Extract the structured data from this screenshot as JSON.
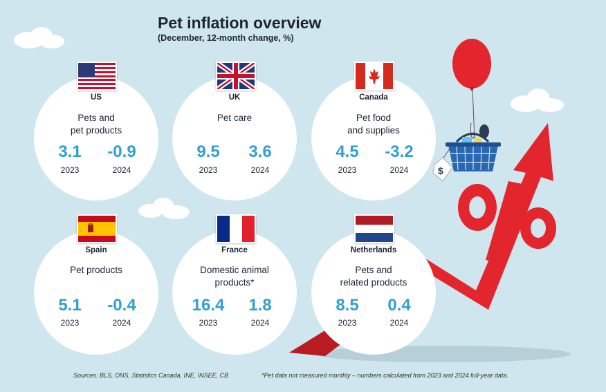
{
  "title": "Pet inflation overview",
  "subtitle": "(December, 12-month change, %)",
  "chart_data": {
    "type": "table",
    "title": "Pet inflation overview",
    "subtitle": "(December, 12-month change, %)",
    "columns": [
      "2023",
      "2024"
    ],
    "rows": [
      {
        "country": "US",
        "category": "Pets and pet products",
        "values": [
          3.1,
          -0.9
        ]
      },
      {
        "country": "UK",
        "category": "Pet care",
        "values": [
          9.5,
          3.6
        ]
      },
      {
        "country": "Canada",
        "category": "Pet food and supplies",
        "values": [
          4.5,
          -3.2
        ]
      },
      {
        "country": "Spain",
        "category": "Pet products",
        "values": [
          5.1,
          -0.4
        ]
      },
      {
        "country": "France",
        "category": "Domestic animal products*",
        "values": [
          16.4,
          1.8
        ]
      },
      {
        "country": "Netherlands",
        "category": "Pets and related products",
        "values": [
          8.5,
          0.4
        ]
      }
    ]
  },
  "cards": [
    {
      "country": "US",
      "flag_icon": "us-flag-icon",
      "category_line1": "Pets and",
      "category_line2": "pet products",
      "v2023": "3.1",
      "v2024": "-0.9",
      "y1": "2023",
      "y2": "2024"
    },
    {
      "country": "UK",
      "flag_icon": "uk-flag-icon",
      "category_line1": "Pet care",
      "category_line2": "",
      "v2023": "9.5",
      "v2024": "3.6",
      "y1": "2023",
      "y2": "2024"
    },
    {
      "country": "Canada",
      "flag_icon": "canada-flag-icon",
      "category_line1": "Pet food",
      "category_line2": "and supplies",
      "v2023": "4.5",
      "v2024": "-3.2",
      "y1": "2023",
      "y2": "2024"
    },
    {
      "country": "Spain",
      "flag_icon": "spain-flag-icon",
      "category_line1": "Pet products",
      "category_line2": "",
      "v2023": "5.1",
      "v2024": "-0.4",
      "y1": "2023",
      "y2": "2024"
    },
    {
      "country": "France",
      "flag_icon": "france-flag-icon",
      "category_line1": "Domestic animal",
      "category_line2": "products*",
      "v2023": "16.4",
      "v2024": "1.8",
      "y1": "2023",
      "y2": "2024"
    },
    {
      "country": "Netherlands",
      "flag_icon": "netherlands-flag-icon",
      "category_line1": "Pets and",
      "category_line2": "related products",
      "v2023": "8.5",
      "v2024": "0.4",
      "y1": "2023",
      "y2": "2024"
    }
  ],
  "sources": "Sources: BLS, ONS, Statistics Canada, INE, INSEE, CB",
  "footnote": "*Pet data not measured monthly – numbers calculated from 2023 and 2024 full-year data.",
  "colors": {
    "background": "#cfe6ee",
    "value_blue": "#2f9fd4",
    "arrow_red": "#e3262d"
  },
  "decoration_icons": [
    "balloon-icon",
    "shopping-basket-icon",
    "price-tag-icon",
    "percent-sign-icon",
    "rising-arrow-icon",
    "cloud-icon"
  ]
}
